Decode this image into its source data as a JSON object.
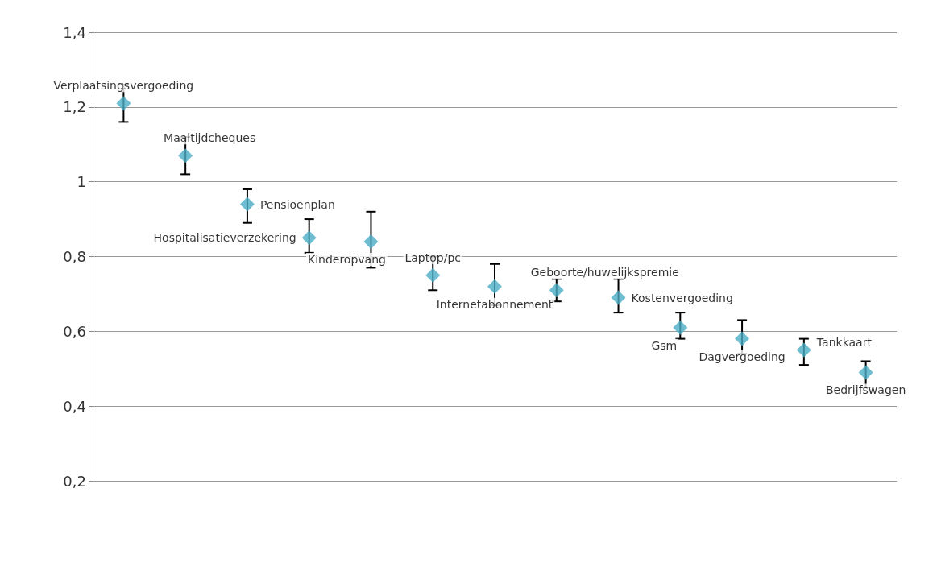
{
  "chart_data": {
    "type": "scatter",
    "categories": [
      null,
      null,
      null,
      null,
      null,
      null,
      null,
      null,
      null,
      null,
      null,
      null,
      null
    ],
    "values": [
      1.21,
      1.07,
      0.94,
      0.85,
      0.84,
      0.75,
      0.72,
      0.71,
      0.69,
      0.61,
      0.58,
      0.55,
      0.49
    ],
    "errors": [
      [
        1.16,
        1.26
      ],
      [
        1.02,
        1.12
      ],
      [
        0.89,
        0.98
      ],
      [
        0.81,
        0.9
      ],
      [
        0.77,
        0.92
      ],
      [
        0.71,
        0.8
      ],
      [
        0.67,
        0.78
      ],
      [
        0.68,
        0.74
      ],
      [
        0.65,
        0.74
      ],
      [
        0.58,
        0.65
      ],
      [
        0.54,
        0.63
      ],
      [
        0.51,
        0.58
      ],
      [
        0.45,
        0.52
      ]
    ],
    "annotations": [
      "Verplaatsingsvergoeding",
      "Maaltijdcheques",
      "Pensioenplan",
      "Hospitalisatieverzekering",
      "Kinderopvang",
      "Laptop/pc",
      "Internetabonnement",
      "Geboorte/huwelijkspremie",
      "Kostenvergoeding",
      "Gsm",
      "Dagvergoeding",
      "Tankkaart",
      "Bedrijfswagen"
    ],
    "color": "#4bacc6",
    "marker": "diamond",
    "ylim": [
      0.2,
      1.4
    ],
    "yticks": [
      {
        "value": 0.2,
        "label": "0,2"
      },
      {
        "value": 0.4,
        "label": "0,4"
      },
      {
        "value": 0.6,
        "label": "0,6"
      },
      {
        "value": 0.8,
        "label": "0,8"
      },
      {
        "value": 1,
        "label": "1"
      },
      {
        "value": 1.2,
        "label": "1,2"
      },
      {
        "value": 1.4,
        "label": "1,4"
      }
    ],
    "grid": "y",
    "tick_labels": "y"
  }
}
